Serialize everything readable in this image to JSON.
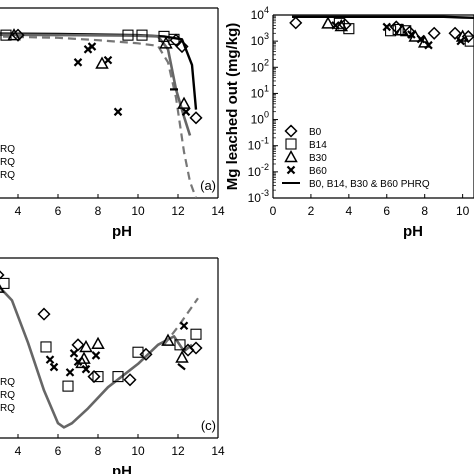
{
  "chart_data": [
    {
      "panel": "a",
      "type": "scatter",
      "panel_label": "(a)",
      "xlabel": "pH",
      "ylabel": "",
      "xlim": [
        2.6,
        14
      ],
      "x_ticks": [
        "4",
        "6",
        "8",
        "10",
        "12",
        "14"
      ],
      "legend_visible": [
        "RQ",
        "RQ",
        "RQ"
      ],
      "series": [
        {
          "marker": "diamond",
          "points": [
            [
              2.7,
              1000
            ],
            [
              4.0,
              1000
            ],
            [
              11.9,
              650
            ],
            [
              12.2,
              380
            ],
            [
              12.9,
              0.9
            ]
          ]
        },
        {
          "marker": "square",
          "points": [
            [
              3.4,
              1000
            ],
            [
              9.5,
              1000
            ],
            [
              10.2,
              1000
            ],
            [
              11.3,
              900
            ],
            [
              11.8,
              700
            ]
          ]
        },
        {
          "marker": "triangle",
          "points": [
            [
              3.8,
              1000
            ],
            [
              8.2,
              90
            ],
            [
              11.4,
              500
            ],
            [
              12.3,
              3
            ]
          ]
        },
        {
          "marker": "cross",
          "points": [
            [
              7.0,
              100
            ],
            [
              7.5,
              300
            ],
            [
              7.7,
              380
            ],
            [
              8.5,
              120
            ],
            [
              9.0,
              1.5
            ],
            [
              12.4,
              1.5
            ]
          ]
        },
        {
          "name": "solid model",
          "style": "solid",
          "points": [
            [
              2.6,
              1150
            ],
            [
              6,
              1100
            ],
            [
              10,
              1000
            ],
            [
              11.3,
              900
            ],
            [
              12.2,
              700
            ],
            [
              12.7,
              80
            ],
            [
              12.9,
              1.8
            ]
          ]
        },
        {
          "name": "dashed model",
          "style": "dashed",
          "points": [
            [
              2.6,
              900
            ],
            [
              6,
              800
            ],
            [
              8,
              650
            ],
            [
              10,
              500
            ],
            [
              11.0,
              400
            ],
            [
              11.5,
              100
            ],
            [
              11.9,
              5
            ],
            [
              12.3,
              0.05
            ],
            [
              12.6,
              0.004
            ],
            [
              12.9,
              0.001
            ]
          ]
        },
        {
          "name": "gray model",
          "style": "solid-gray",
          "points": [
            [
              2.6,
              1050
            ],
            [
              6,
              1000
            ],
            [
              10,
              950
            ],
            [
              11.0,
              900
            ],
            [
              11.5,
              300
            ],
            [
              11.9,
              10
            ],
            [
              12.3,
              1.0
            ],
            [
              12.6,
              0.2
            ]
          ]
        },
        {
          "name": "dash-dot segment",
          "style": "dashdot",
          "points": [
            [
              11.6,
              10
            ],
            [
              12.0,
              10
            ]
          ]
        }
      ]
    },
    {
      "panel": "b",
      "type": "scatter",
      "xlabel": "pH",
      "ylabel": "Mg leached out (mg/kg)",
      "xlim": [
        0,
        10.6
      ],
      "ylog": true,
      "ylim": [
        0.001,
        10000
      ],
      "x_ticks": [
        "0",
        "2",
        "4",
        "6",
        "8",
        "10"
      ],
      "y_ticks": [
        "10^-3",
        "10^-2",
        "10^-1",
        "10^0",
        "10^1",
        "10^2",
        "10^3",
        "10^4"
      ],
      "y_tick_values": [
        0.001,
        0.01,
        0.1,
        1,
        10,
        100,
        1000,
        10000
      ],
      "legend": [
        "B0",
        "B14",
        "B30",
        "B60",
        "B0, B14, B30 & B60 PHRQ"
      ],
      "series": [
        {
          "name": "B0",
          "marker": "diamond",
          "points": [
            [
              1.2,
              5000
            ],
            [
              3.8,
              4200
            ],
            [
              6.5,
              3500
            ],
            [
              7.2,
              2200
            ],
            [
              8.5,
              2000
            ],
            [
              9.6,
              2000
            ],
            [
              10.3,
              1500
            ]
          ]
        },
        {
          "name": "B14",
          "marker": "square",
          "points": [
            [
              3.5,
              4800
            ],
            [
              4.0,
              3000
            ],
            [
              6.2,
              2500
            ],
            [
              6.6,
              2800
            ],
            [
              7.0,
              2500
            ],
            [
              10.4,
              1000
            ]
          ]
        },
        {
          "name": "B30",
          "marker": "triangle",
          "points": [
            [
              2.9,
              4800
            ],
            [
              3.6,
              3800
            ],
            [
              6.8,
              2600
            ],
            [
              7.5,
              1500
            ],
            [
              8.0,
              900
            ],
            [
              10.0,
              1500
            ]
          ]
        },
        {
          "name": "B60",
          "marker": "cross",
          "points": [
            [
              3.3,
              4000
            ],
            [
              6.0,
              3500
            ],
            [
              7.3,
              1800
            ],
            [
              7.8,
              1200
            ],
            [
              8.2,
              700
            ],
            [
              9.9,
              1000
            ]
          ]
        },
        {
          "name": "B0, B14, B30 & B60 PHRQ",
          "style": "solid",
          "points": [
            [
              1.0,
              8500
            ],
            [
              9.0,
              8500
            ],
            [
              10.0,
              8000
            ],
            [
              10.6,
              7800
            ]
          ]
        }
      ]
    },
    {
      "panel": "c",
      "type": "scatter",
      "panel_label": "(c)",
      "xlabel": "pH",
      "ylabel": "",
      "xlim": [
        2.6,
        14
      ],
      "x_ticks": [
        "4",
        "6",
        "8",
        "10",
        "12",
        "14"
      ],
      "legend_visible": [
        "RQ",
        "RQ",
        "RQ"
      ],
      "series": [
        {
          "marker": "diamond",
          "points": [
            [
              3.0,
              0.74
            ],
            [
              5.3,
              0.37
            ],
            [
              7.0,
              0.08
            ],
            [
              7.8,
              -0.22
            ],
            [
              9.6,
              -0.25
            ],
            [
              10.4,
              -0.01
            ],
            [
              12.5,
              0.03
            ],
            [
              12.9,
              0.05
            ]
          ]
        },
        {
          "marker": "square",
          "points": [
            [
              3.3,
              0.66
            ],
            [
              5.4,
              0.06
            ],
            [
              6.5,
              -0.31
            ],
            [
              8.0,
              -0.22
            ],
            [
              9.0,
              -0.22
            ],
            [
              10.0,
              0.01
            ],
            [
              12.1,
              0.08
            ],
            [
              12.9,
              0.18
            ]
          ]
        },
        {
          "marker": "triangle",
          "points": [
            [
              3.0,
              0.62
            ],
            [
              7.2,
              -0.09
            ],
            [
              7.3,
              -0.05
            ],
            [
              7.4,
              0.06
            ],
            [
              8.0,
              0.09
            ],
            [
              11.5,
              0.12
            ],
            [
              12.2,
              -0.04
            ]
          ]
        },
        {
          "marker": "cross",
          "points": [
            [
              5.6,
              -0.06
            ],
            [
              5.8,
              -0.13
            ],
            [
              6.6,
              -0.18
            ],
            [
              6.8,
              0.0
            ],
            [
              7.0,
              -0.08
            ],
            [
              7.4,
              -0.15
            ],
            [
              7.9,
              -0.02
            ],
            [
              12.3,
              0.26
            ]
          ]
        },
        {
          "name": "solid model",
          "style": "solid-gray",
          "points": [
            [
              2.6,
              0.72
            ],
            [
              3.7,
              0.5
            ],
            [
              4.5,
              0.1
            ],
            [
              5.3,
              -0.35
            ],
            [
              6.0,
              -0.66
            ],
            [
              6.3,
              -0.7
            ],
            [
              6.7,
              -0.66
            ],
            [
              7.5,
              -0.52
            ],
            [
              8.5,
              -0.32
            ],
            [
              10.0,
              -0.1
            ],
            [
              11.0,
              0.08
            ],
            [
              11.8,
              0.16
            ],
            [
              12.3,
              0.02
            ],
            [
              12.7,
              0.08
            ]
          ]
        },
        {
          "name": "dashed model",
          "style": "dashed",
          "points": [
            [
              11.3,
              0.08
            ],
            [
              12.0,
              0.25
            ],
            [
              13.0,
              0.52
            ]
          ]
        },
        {
          "name": "dash-dot segment",
          "style": "dashdot",
          "points": [
            [
              12.0,
              -0.1
            ],
            [
              12.4,
              -0.16
            ]
          ]
        }
      ]
    }
  ]
}
